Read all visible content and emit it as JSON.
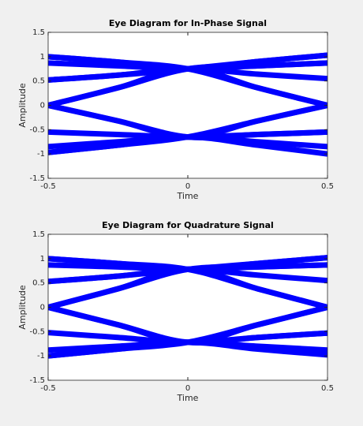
{
  "chart_data": [
    {
      "type": "line",
      "title": "Eye Diagram for In-Phase Signal",
      "x_label": "Time",
      "y_label": "Amplitude",
      "x": [
        -0.5,
        -0.25,
        0,
        0.25,
        0.5
      ],
      "xlim": [
        -0.5,
        0.5
      ],
      "xticks": [
        -0.5,
        0,
        0.5
      ],
      "ylim": [
        -1.5,
        1.5
      ],
      "yticks": [
        -1.5,
        -1,
        -0.5,
        0,
        0.5,
        1,
        1.5
      ],
      "series": [
        {
          "color": "#0000ff",
          "values": [
            1.0,
            0.89,
            0.75,
            0.9,
            1.03
          ]
        },
        {
          "color": "#0000ff",
          "values": [
            0.87,
            0.81,
            0.75,
            0.81,
            0.87
          ]
        },
        {
          "color": "#0000ff",
          "values": [
            0.52,
            0.62,
            0.75,
            0.64,
            0.55
          ]
        },
        {
          "color": "#0000ff",
          "values": [
            0,
            0.36,
            0.75,
            0.36,
            0
          ]
        },
        {
          "color": "#0000ff",
          "values": [
            1.0,
            0.89,
            0.75,
            0.36,
            0
          ]
        },
        {
          "color": "#0000ff",
          "values": [
            0,
            0.36,
            0.75,
            0.81,
            0.87
          ]
        },
        {
          "color": "#0000ff",
          "values": [
            0.52,
            0.62,
            0.75,
            0.9,
            1.03
          ]
        },
        {
          "color": "#0000ff",
          "values": [
            -0.55,
            -0.6,
            -0.65,
            -0.6,
            -0.55
          ]
        },
        {
          "color": "#0000ff",
          "values": [
            -0.85,
            -0.75,
            -0.65,
            -0.75,
            -0.85
          ]
        },
        {
          "color": "#0000ff",
          "values": [
            -0.97,
            -0.82,
            -0.65,
            -0.82,
            -1.0
          ]
        },
        {
          "color": "#0000ff",
          "values": [
            0,
            -0.32,
            -0.65,
            -0.32,
            0
          ]
        },
        {
          "color": "#0000ff",
          "values": [
            -0.97,
            -0.82,
            -0.65,
            -0.32,
            0
          ]
        },
        {
          "color": "#0000ff",
          "values": [
            0,
            -0.32,
            -0.65,
            -0.6,
            -0.55
          ]
        }
      ]
    },
    {
      "type": "line",
      "title": "Eye Diagram for Quadrature Signal",
      "x_label": "Time",
      "y_label": "Amplitude",
      "x": [
        -0.5,
        -0.25,
        0,
        0.25,
        0.5
      ],
      "xlim": [
        -0.5,
        0.5
      ],
      "xticks": [
        -0.5,
        0,
        0.5
      ],
      "ylim": [
        -1.5,
        1.5
      ],
      "yticks": [
        -1.5,
        -1,
        -0.5,
        0,
        0.5,
        1,
        1.5
      ],
      "series": [
        {
          "color": "#0000ff",
          "values": [
            1.0,
            0.9,
            0.78,
            0.9,
            1.02
          ]
        },
        {
          "color": "#0000ff",
          "values": [
            0.87,
            0.83,
            0.78,
            0.83,
            0.87
          ]
        },
        {
          "color": "#0000ff",
          "values": [
            0.53,
            0.64,
            0.78,
            0.66,
            0.55
          ]
        },
        {
          "color": "#0000ff",
          "values": [
            0,
            0.38,
            0.78,
            0.38,
            0
          ]
        },
        {
          "color": "#0000ff",
          "values": [
            1.0,
            0.9,
            0.78,
            0.38,
            0
          ]
        },
        {
          "color": "#0000ff",
          "values": [
            0,
            0.38,
            0.78,
            0.83,
            0.87
          ]
        },
        {
          "color": "#0000ff",
          "values": [
            0.53,
            0.64,
            0.78,
            0.9,
            1.02
          ]
        },
        {
          "color": "#0000ff",
          "values": [
            -0.52,
            -0.62,
            -0.72,
            -0.62,
            -0.53
          ]
        },
        {
          "color": "#0000ff",
          "values": [
            -0.88,
            -0.8,
            -0.72,
            -0.8,
            -0.88
          ]
        },
        {
          "color": "#0000ff",
          "values": [
            -1.0,
            -0.86,
            -0.72,
            -0.86,
            -0.98
          ]
        },
        {
          "color": "#0000ff",
          "values": [
            0,
            -0.36,
            -0.72,
            -0.36,
            0
          ]
        },
        {
          "color": "#0000ff",
          "values": [
            -1.0,
            -0.86,
            -0.72,
            -0.36,
            0
          ]
        },
        {
          "color": "#0000ff",
          "values": [
            0,
            -0.36,
            -0.72,
            -0.62,
            -0.53
          ]
        }
      ]
    }
  ]
}
